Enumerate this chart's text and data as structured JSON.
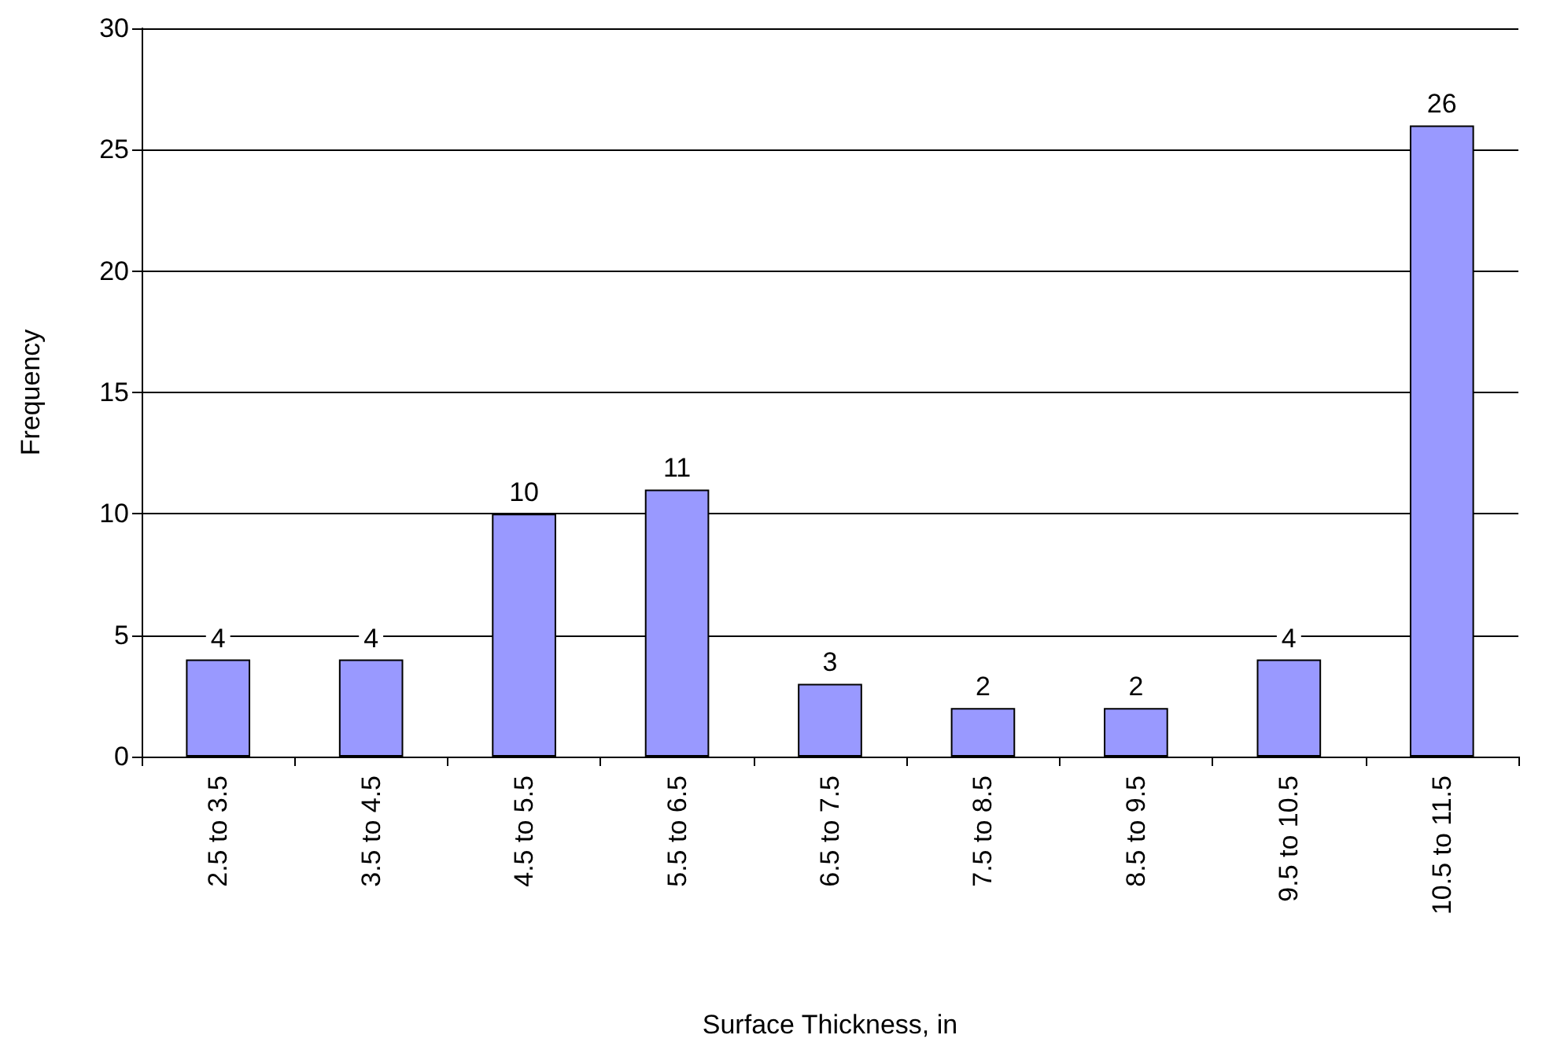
{
  "chart_data": {
    "type": "bar",
    "xlabel": "Surface Thickness, in",
    "ylabel": "Frequency",
    "categories": [
      "2.5 to 3.5",
      "3.5 to 4.5",
      "4.5 to 5.5",
      "5.5 to 6.5",
      "6.5 to 7.5",
      "7.5 to 8.5",
      "8.5 to 9.5",
      "9.5 to 10.5",
      "10.5 to 11.5"
    ],
    "values": [
      4,
      4,
      10,
      11,
      3,
      2,
      2,
      4,
      26
    ],
    "color": "#9999ff",
    "ylim": [
      0,
      30
    ],
    "yticks": [
      0,
      5,
      10,
      15,
      20,
      25,
      30
    ],
    "grid": "y",
    "data_labels": true
  }
}
